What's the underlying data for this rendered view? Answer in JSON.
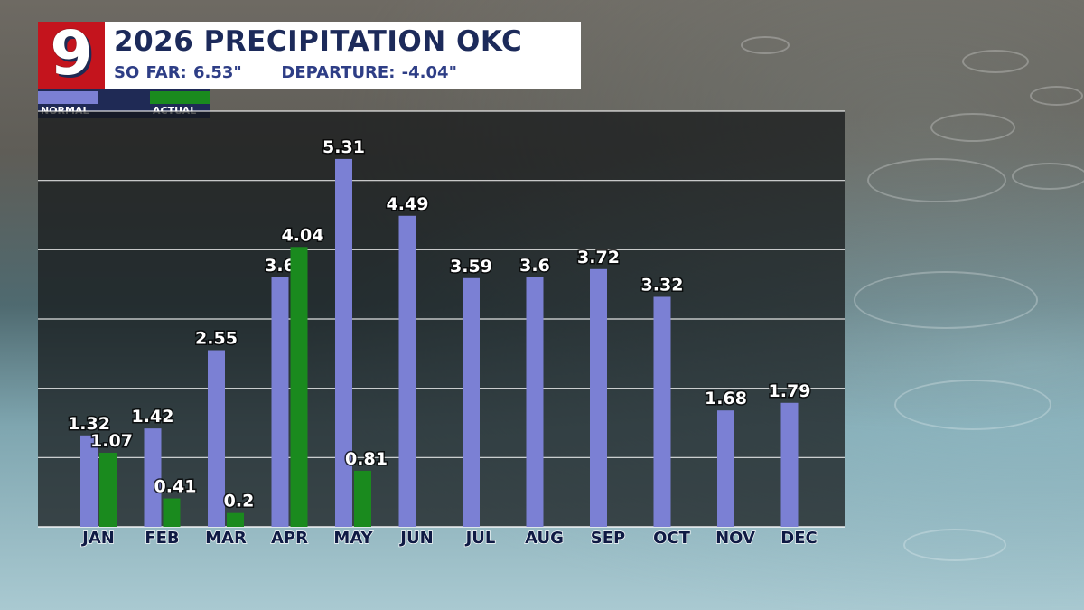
{
  "header": {
    "logo_text": "9",
    "title": "2026 PRECIPITATION OKC",
    "subtitle": "SO FAR: 6.53\"      DEPARTURE: -4.04\""
  },
  "legend": [
    {
      "label": "NORMAL",
      "color": "#7b80d4"
    },
    {
      "label": "ACTUAL",
      "color": "#1a8a1e"
    }
  ],
  "colors": {
    "normal": "#7b80d4",
    "actual": "#1a8a1e",
    "brand_red": "#c4141d",
    "brand_navy": "#1f2a55"
  },
  "chart_data": {
    "type": "bar",
    "title": "2026 PRECIPITATION OKC",
    "categories": [
      "JAN",
      "FEB",
      "MAR",
      "APR",
      "MAY",
      "JUN",
      "JUL",
      "AUG",
      "SEP",
      "OCT",
      "NOV",
      "DEC"
    ],
    "series": [
      {
        "name": "NORMAL",
        "values": [
          1.32,
          1.42,
          2.55,
          3.6,
          5.31,
          4.49,
          3.59,
          3.6,
          3.72,
          3.32,
          1.68,
          1.79
        ],
        "labels": [
          "1.32",
          "1.42",
          "2.55",
          "3.6",
          "5.31",
          "4.49",
          "3.59",
          "3.6",
          "3.72",
          "3.32",
          "1.68",
          "1.79"
        ]
      },
      {
        "name": "ACTUAL",
        "values": [
          1.07,
          0.41,
          0.2,
          4.04,
          0.81,
          null,
          null,
          null,
          null,
          null,
          null,
          null
        ],
        "labels": [
          "1.07",
          "0.41",
          "0.2",
          "4.04",
          "0.81",
          null,
          null,
          null,
          null,
          null,
          null,
          null
        ]
      }
    ],
    "ylim": [
      0,
      6
    ],
    "gridlines": [
      1,
      2,
      3,
      4,
      5,
      6
    ],
    "grid": true,
    "legend_position": "top-left"
  }
}
